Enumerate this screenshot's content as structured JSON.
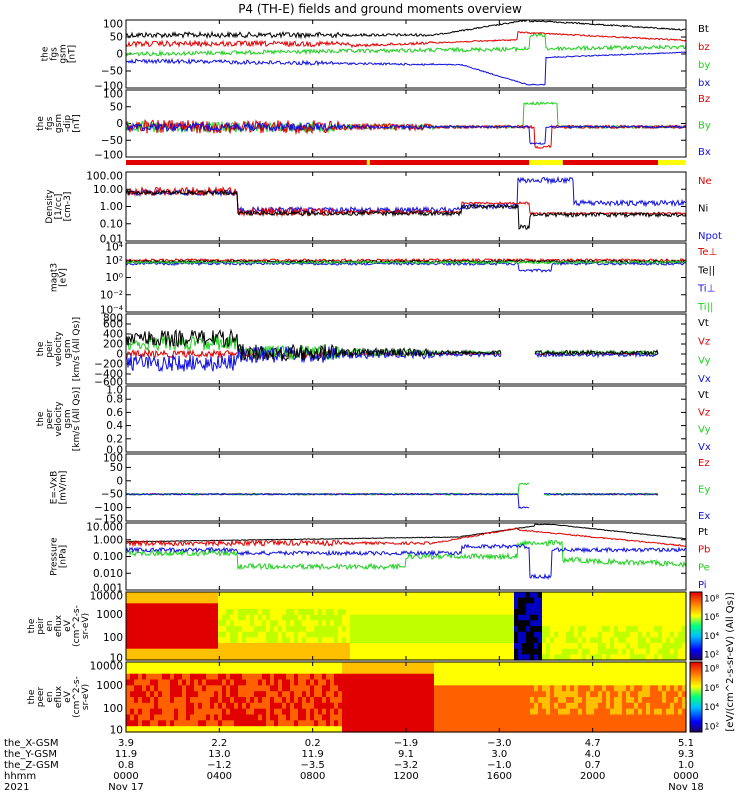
{
  "title": "P4 (TH-E) fields and ground moments overview",
  "colors": {
    "black": "#000000",
    "red": "#e00000",
    "green": "#20d020",
    "blue": "#1010e0",
    "yellow": "#ffff00",
    "bar_red": "#e00000"
  },
  "chart_data": [
    {
      "type": "line",
      "ylabel": [
        "the",
        "fgs",
        "gsm",
        "[nT]"
      ],
      "yticks": [
        "100",
        "50",
        "0",
        "−50",
        "−100"
      ],
      "ylim": [
        -100,
        100
      ],
      "legend": [
        {
          "name": "Bt",
          "color": "#000000"
        },
        {
          "name": "bz",
          "color": "#e00000"
        },
        {
          "name": "by",
          "color": "#20d020"
        },
        {
          "name": "bx",
          "color": "#1010e0"
        }
      ]
    },
    {
      "type": "line",
      "ylabel": [
        "the",
        "fgs",
        "gsm",
        "-dip",
        "[nT]"
      ],
      "yticks": [
        "100",
        "50",
        "0",
        "−50",
        "−100"
      ],
      "ylim": [
        -100,
        100
      ],
      "legend": [
        {
          "name": "Bz",
          "color": "#e00000"
        },
        {
          "name": "By",
          "color": "#20d020"
        },
        {
          "name": "Bx",
          "color": "#1010e0"
        }
      ]
    },
    {
      "type": "line",
      "log": true,
      "ylabel": [
        "Density",
        "[1/cc]",
        "[cm-3]"
      ],
      "yticks": [
        "100.00",
        "10.00",
        "1.00",
        "0.10",
        "0.01"
      ],
      "legend": [
        {
          "name": "Ne",
          "color": "#e00000"
        },
        {
          "name": "Ni",
          "color": "#000000"
        },
        {
          "name": "Npot",
          "color": "#1010e0"
        }
      ]
    },
    {
      "type": "line",
      "log": true,
      "ylabel": [
        "magt3",
        "[eV]"
      ],
      "yticks": [
        "10⁴",
        "10²",
        "10⁰",
        "10⁻²",
        "10⁻⁴"
      ],
      "legend": [
        {
          "name": "Te⊥",
          "color": "#e00000"
        },
        {
          "name": "Te||",
          "color": "#000000"
        },
        {
          "name": "Ti⊥",
          "color": "#1010e0"
        },
        {
          "name": "Ti||",
          "color": "#20d020"
        }
      ]
    },
    {
      "type": "line",
      "ylabel": [
        "the",
        "peir",
        "velocity",
        "gsm",
        "[km/s (All Qs)]"
      ],
      "yticks": [
        "800",
        "600",
        "400",
        "200",
        "0",
        "−200",
        "−400",
        "−600"
      ],
      "ylim": [
        -600,
        800
      ],
      "legend": [
        {
          "name": "Vt",
          "color": "#000000"
        },
        {
          "name": "Vz",
          "color": "#e00000"
        },
        {
          "name": "Vy",
          "color": "#20d020"
        },
        {
          "name": "Vx",
          "color": "#1010e0"
        }
      ]
    },
    {
      "type": "line",
      "ylabel": [
        "the",
        "peer",
        "velocity",
        "gsm",
        "[km/s (All Qs)]"
      ],
      "yticks": [
        "1.0",
        "0.8",
        "0.6",
        "0.4",
        "0.2",
        "0.0"
      ],
      "ylim": [
        0,
        1
      ],
      "legend": [
        {
          "name": "Vt",
          "color": "#000000"
        },
        {
          "name": "Vz",
          "color": "#e00000"
        },
        {
          "name": "Vy",
          "color": "#20d020"
        },
        {
          "name": "Vx",
          "color": "#1010e0"
        }
      ]
    },
    {
      "type": "line",
      "ylabel": [
        "E=-VxB",
        "[mV/m]"
      ],
      "yticks": [
        "100",
        "50",
        "0",
        "−50",
        "−100",
        "−150"
      ],
      "ylim": [
        -150,
        100
      ],
      "legend": [
        {
          "name": "Ez",
          "color": "#e00000"
        },
        {
          "name": "Ey",
          "color": "#20d020"
        },
        {
          "name": "Ex",
          "color": "#1010e0"
        }
      ]
    },
    {
      "type": "line",
      "log": true,
      "ylabel": [
        "Pressure",
        "[nPa]"
      ],
      "yticks": [
        "10.000",
        "1.000",
        "0.100",
        "0.010",
        "0.001"
      ],
      "legend": [
        {
          "name": "Pt",
          "color": "#000000"
        },
        {
          "name": "Pb",
          "color": "#e00000"
        },
        {
          "name": "Pe",
          "color": "#20d020"
        },
        {
          "name": "Pi",
          "color": "#1010e0"
        }
      ]
    },
    {
      "type": "heatmap",
      "ylabel": [
        "the",
        "peir",
        "en",
        "eflux",
        "eV",
        "(cm^2-s-",
        "sr-eV)"
      ],
      "yticks": [
        "10000",
        "1000",
        "100",
        "10"
      ],
      "colorbar_ticks": [
        "10⁸",
        "10⁶",
        "10⁴",
        "10²"
      ],
      "colorbar_label": "[eV/(cm^2-s-sr-eV) (All Qs)]"
    },
    {
      "type": "heatmap",
      "ylabel": [
        "the",
        "peer",
        "en",
        "eflux",
        "eV",
        "(cm^2-s-",
        "sr-eV)"
      ],
      "yticks": [
        "10000",
        "1000",
        "100",
        "10"
      ],
      "colorbar_ticks": [
        "10⁸",
        "10⁶",
        "10⁴",
        "10²"
      ],
      "colorbar_label": "[eV/(cm^2-s-sr-eV) (All Qs)]"
    }
  ],
  "x_axis": {
    "rows": [
      {
        "label": "the_X-GSM",
        "values": [
          "3.9",
          "2.2",
          "0.2",
          "−1.9",
          "−3.0",
          "4.7",
          "5.1"
        ]
      },
      {
        "label": "the_Y-GSM",
        "values": [
          "11.9",
          "13.0",
          "11.9",
          "9.1",
          "3.0",
          "4.0",
          "9.3"
        ]
      },
      {
        "label": "the_Z-GSM",
        "values": [
          "0.8",
          "−1.2",
          "−3.5",
          "−3.2",
          "−1.0",
          "0.7",
          "1.0"
        ]
      },
      {
        "label": "hhmm",
        "values": [
          "0000",
          "0400",
          "0800",
          "1200",
          "1600",
          "2000",
          "0000"
        ]
      },
      {
        "label": "2021",
        "values": [
          "Nov 17",
          "",
          "",
          "",
          "",
          "",
          "Nov 18"
        ]
      }
    ]
  }
}
